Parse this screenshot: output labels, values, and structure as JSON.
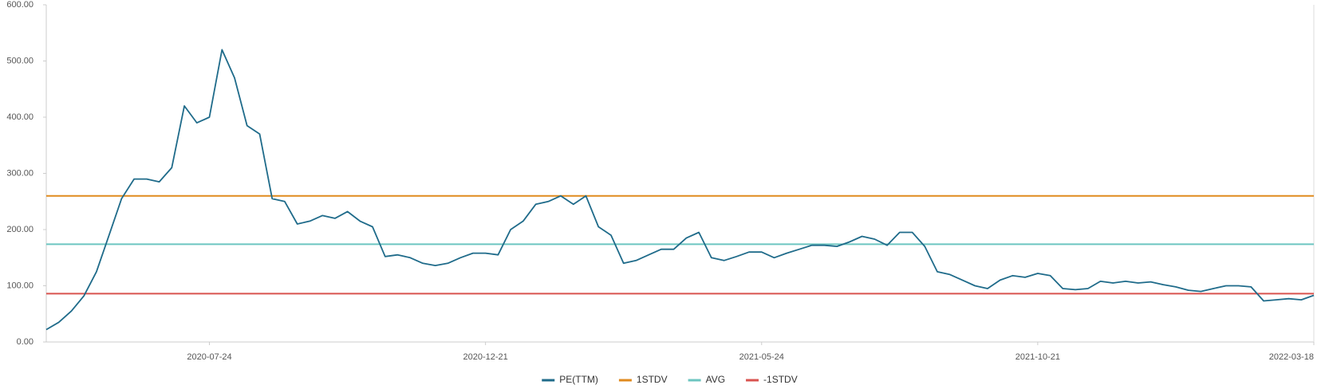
{
  "chart_data": {
    "type": "line",
    "categories": [
      null,
      null,
      null,
      null,
      null,
      null,
      null,
      null,
      null,
      null,
      null,
      null,
      null,
      "2020-07-24",
      null,
      null,
      null,
      null,
      null,
      null,
      null,
      null,
      null,
      null,
      null,
      null,
      null,
      null,
      null,
      null,
      null,
      null,
      null,
      null,
      null,
      "2020-12-21",
      null,
      null,
      null,
      null,
      null,
      null,
      null,
      null,
      null,
      null,
      null,
      null,
      null,
      null,
      null,
      null,
      null,
      null,
      null,
      null,
      null,
      "2021-05-24",
      null,
      null,
      null,
      null,
      null,
      null,
      null,
      null,
      null,
      null,
      null,
      null,
      null,
      null,
      null,
      null,
      null,
      null,
      null,
      null,
      null,
      "2021-10-21",
      null,
      null,
      null,
      null,
      null,
      null,
      null,
      null,
      null,
      null,
      null,
      null,
      null,
      null,
      null,
      null,
      null,
      null,
      null,
      null,
      null,
      "2022-03-18"
    ],
    "series": [
      {
        "name": "PE(TTM)",
        "color": "#1f6b8a",
        "values": [
          22,
          35,
          55,
          82,
          125,
          190,
          255,
          290,
          290,
          285,
          310,
          420,
          390,
          400,
          520,
          470,
          385,
          370,
          255,
          250,
          210,
          215,
          225,
          220,
          232,
          215,
          205,
          152,
          155,
          150,
          140,
          136,
          140,
          150,
          158,
          158,
          155,
          200,
          215,
          245,
          250,
          260,
          245,
          260,
          205,
          190,
          140,
          145,
          155,
          165,
          165,
          185,
          195,
          150,
          145,
          152,
          160,
          160,
          150,
          158,
          165,
          172,
          172,
          170,
          178,
          188,
          183,
          172,
          195,
          195,
          170,
          125,
          120,
          110,
          100,
          95,
          110,
          118,
          115,
          122,
          118,
          95,
          93,
          95,
          108,
          105,
          108,
          105,
          107,
          102,
          98,
          92,
          90,
          95,
          100,
          100,
          98,
          73,
          75,
          77,
          75,
          83
        ]
      }
    ],
    "reference_lines": [
      {
        "name": "1STDV",
        "color": "#e08a1e",
        "value": 260
      },
      {
        "name": "AVG",
        "color": "#6cc5c0",
        "value": 174
      },
      {
        "name": "-1STDV",
        "color": "#d9534f",
        "value": 86
      }
    ],
    "ylim": [
      0,
      600
    ],
    "yticks": [
      {
        "value": 0,
        "label": "0.00"
      },
      {
        "value": 100,
        "label": "100.00"
      },
      {
        "value": 200,
        "label": "200.00"
      },
      {
        "value": 300,
        "label": "300.00"
      },
      {
        "value": 400,
        "label": "400.00"
      },
      {
        "value": 500,
        "label": "500.00"
      },
      {
        "value": 600,
        "label": "600.00"
      }
    ],
    "legend": "bottom"
  }
}
